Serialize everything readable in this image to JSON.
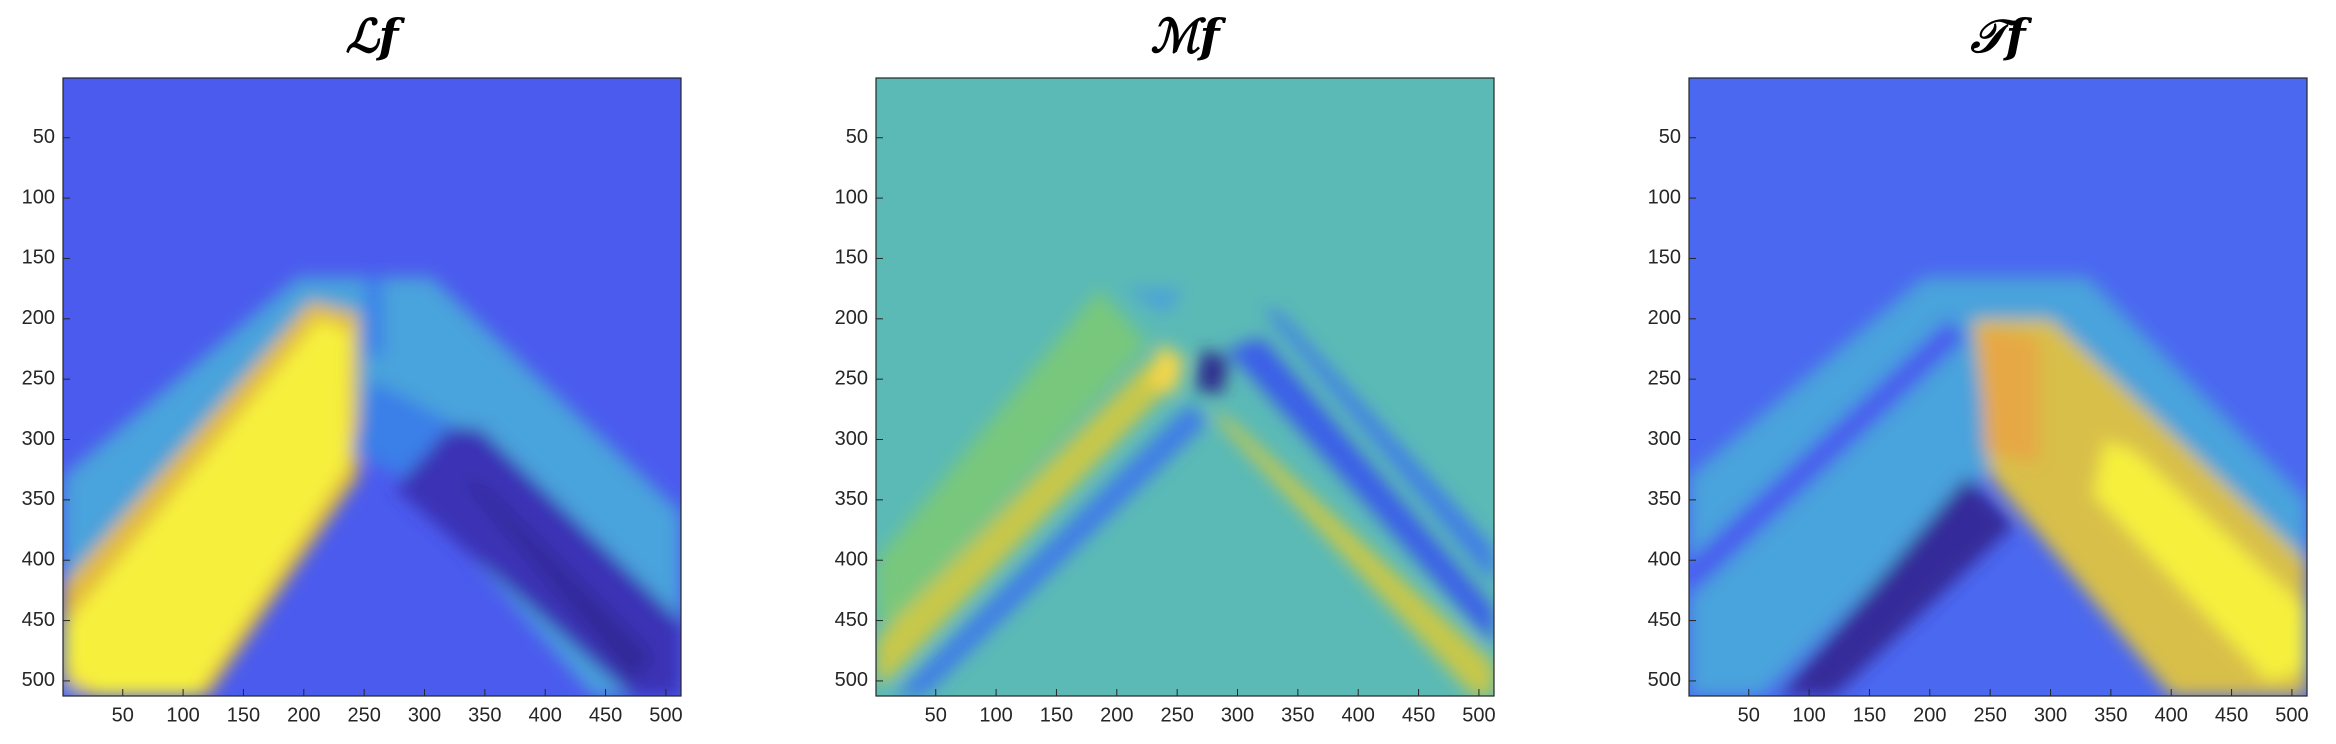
{
  "chart_data": [
    {
      "type": "heatmap",
      "title": "ℒf",
      "xlim": [
        0.5,
        512.5
      ],
      "ylim": [
        0.5,
        512.5
      ],
      "y_reversed": true,
      "xticks": [
        50,
        100,
        150,
        200,
        250,
        300,
        350,
        400,
        450,
        500
      ],
      "yticks": [
        50,
        100,
        150,
        200,
        250,
        300,
        350,
        400,
        450,
        500
      ]
    },
    {
      "type": "heatmap",
      "title": "ℳf",
      "xlim": [
        0.5,
        512.5
      ],
      "ylim": [
        0.5,
        512.5
      ],
      "y_reversed": true,
      "xticks": [
        50,
        100,
        150,
        200,
        250,
        300,
        350,
        400,
        450,
        500
      ],
      "yticks": [
        50,
        100,
        150,
        200,
        250,
        300,
        350,
        400,
        450,
        500
      ]
    },
    {
      "type": "heatmap",
      "title": "𝒯f",
      "xlim": [
        0.5,
        512.5
      ],
      "ylim": [
        0.5,
        512.5
      ],
      "y_reversed": true,
      "xticks": [
        50,
        100,
        150,
        200,
        250,
        300,
        350,
        400,
        450,
        500
      ],
      "yticks": [
        50,
        100,
        150,
        200,
        250,
        300,
        350,
        400,
        450,
        500
      ]
    }
  ]
}
